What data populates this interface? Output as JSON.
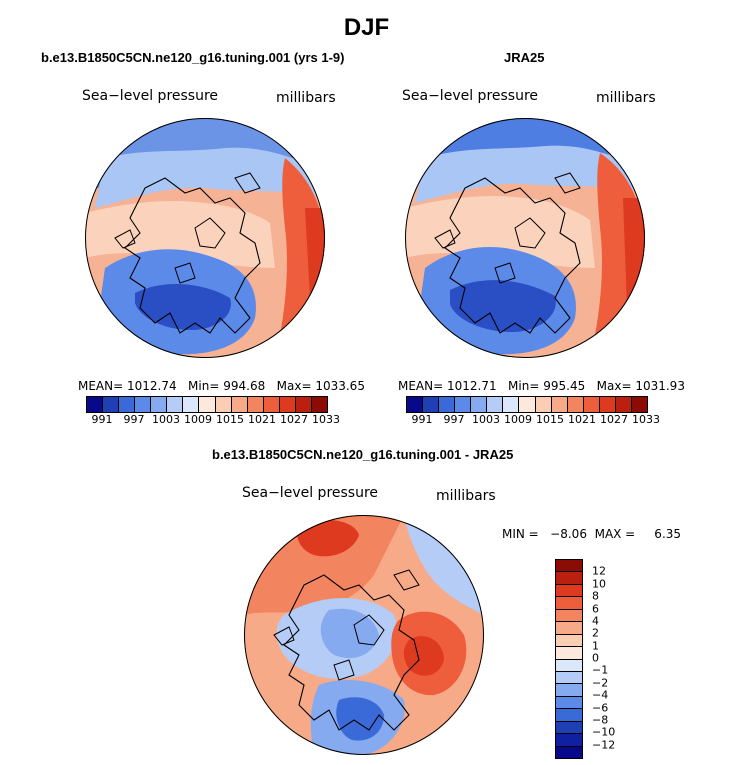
{
  "title": "DJF",
  "panels": {
    "model": {
      "title": "b.e13.B1850C5CN.ne120_g16.tuning.001 (yrs 1-9)",
      "variable": "Sea−level pressure",
      "units": "millibars",
      "stats": "MEAN= 1012.74   Min= 994.68   Max= 1033.65",
      "mean": 1012.74,
      "min": 994.68,
      "max": 1033.65
    },
    "obs": {
      "title": "JRA25",
      "variable": "Sea−level pressure",
      "units": "millibars",
      "stats": "MEAN= 1012.71   Min= 995.45   Max= 1031.93",
      "mean": 1012.71,
      "min": 995.45,
      "max": 1031.93
    },
    "diff": {
      "title": "b.e13.B1850C5CN.ne120_g16.tuning.001 - JRA25",
      "variable": "Sea−level pressure",
      "units": "millibars",
      "stats": "MIN =   −8.06  MAX =     6.35",
      "min": -8.06,
      "max": 6.35
    }
  },
  "colorbar_abs": {
    "ticks": [
      "991",
      "997",
      "1003",
      "1009",
      "1015",
      "1021",
      "1027",
      "1033"
    ],
    "colors": [
      "#08088a",
      "#1f3fb5",
      "#3a6ad8",
      "#5c8ae8",
      "#86aaf0",
      "#b4ccf6",
      "#dbe7fb",
      "#fde9dc",
      "#fbcdb3",
      "#f7aa88",
      "#f38460",
      "#ee5e3c",
      "#dd3a20",
      "#bb1f10",
      "#8a0c05"
    ]
  },
  "colorbar_diff": {
    "ticks": [
      "12",
      "10",
      "8",
      "6",
      "4",
      "2",
      "1",
      "0",
      "−1",
      "−2",
      "−4",
      "−6",
      "−8",
      "−10",
      "−12"
    ],
    "colors": [
      "#8a0c05",
      "#bb1f10",
      "#dd3a20",
      "#ee5e3c",
      "#f38460",
      "#f7aa88",
      "#fbcdb3",
      "#fde9dc",
      "#dbe7fb",
      "#b4ccf6",
      "#86aaf0",
      "#5c8ae8",
      "#3a6ad8",
      "#1f3fb5",
      "#0f20a0",
      "#08088a"
    ]
  }
}
